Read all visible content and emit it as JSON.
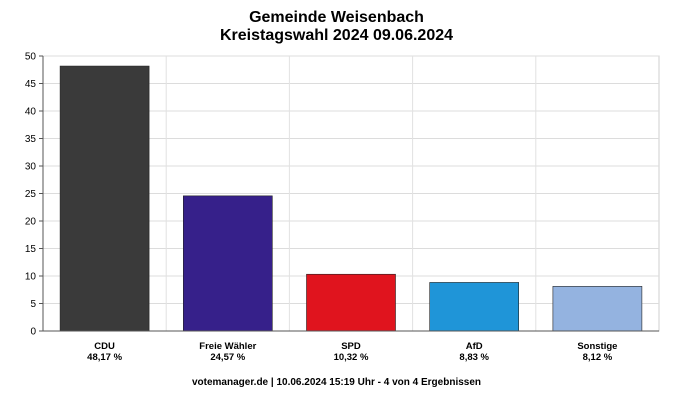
{
  "chart_data": {
    "type": "bar",
    "title": "Gemeinde Weisenbach",
    "subtitle": "Kreistagswahl 2024 09.06.2024",
    "categories": [
      "CDU",
      "Freie Wähler",
      "SPD",
      "AfD",
      "Sonstige"
    ],
    "value_labels": [
      "48,17 %",
      "24,57 %",
      "10,32 %",
      "8,83 %",
      "8,12 %"
    ],
    "values": [
      48.17,
      24.57,
      10.32,
      8.83,
      8.12
    ],
    "colors": [
      "#3a3a3a",
      "#36208a",
      "#e0141e",
      "#1f95d8",
      "#94b3e0"
    ],
    "ylim": [
      0,
      50
    ],
    "yticks": [
      "0",
      "5",
      "10",
      "15",
      "20",
      "25",
      "30",
      "35",
      "40",
      "45",
      "50"
    ],
    "grid": true,
    "xlabel": "",
    "ylabel": ""
  },
  "footer": "votemanager.de | 10.06.2024 15:19 Uhr - 4 von 4 Ergebnissen"
}
